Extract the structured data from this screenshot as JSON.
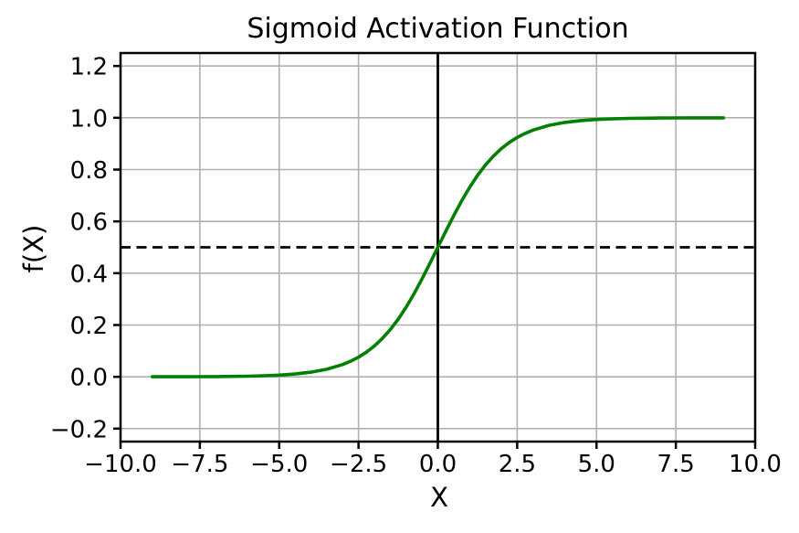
{
  "chart_data": {
    "type": "line",
    "title": "Sigmoid Activation Function",
    "xlabel": "X",
    "ylabel": "f(X)",
    "xlim": [
      -10,
      10
    ],
    "ylim": [
      -0.25,
      1.25
    ],
    "grid": true,
    "grid_color": "#b0b0b0",
    "background_color": "#ffffff",
    "axis_color": "#000000",
    "legend": "none",
    "xtick_values": [
      -10,
      -7.5,
      -5,
      -2.5,
      0,
      2.5,
      5,
      7.5,
      10
    ],
    "xtick_labels": [
      "−10.0",
      "−7.5",
      "−5.0",
      "−2.5",
      "0.0",
      "2.5",
      "5.0",
      "7.5",
      "10.0"
    ],
    "ytick_values": [
      -0.2,
      0.0,
      0.2,
      0.4,
      0.6,
      0.8,
      1.0,
      1.2
    ],
    "ytick_labels": [
      "−0.2",
      "0.0",
      "0.2",
      "0.4",
      "0.6",
      "0.8",
      "1.0",
      "1.2"
    ],
    "series": [
      {
        "name": "sigmoid",
        "color": "#008000",
        "line_width": 3.6,
        "x_range": [
          -9,
          9
        ],
        "points": [
          [
            -9,
            0.00012
          ],
          [
            -8.5,
            0.0002
          ],
          [
            -8,
            0.00034
          ],
          [
            -7.5,
            0.00055
          ],
          [
            -7,
            0.00091
          ],
          [
            -6.5,
            0.0015
          ],
          [
            -6,
            0.00247
          ],
          [
            -5.5,
            0.00407
          ],
          [
            -5,
            0.00669
          ],
          [
            -4.5,
            0.01099
          ],
          [
            -4,
            0.01799
          ],
          [
            -3.5,
            0.02931
          ],
          [
            -3,
            0.04743
          ],
          [
            -2.75,
            0.06009
          ],
          [
            -2.5,
            0.07586
          ],
          [
            -2.25,
            0.09535
          ],
          [
            -2,
            0.1192
          ],
          [
            -1.75,
            0.14805
          ],
          [
            -1.5,
            0.18243
          ],
          [
            -1.25,
            0.2227
          ],
          [
            -1,
            0.26894
          ],
          [
            -0.75,
            0.32082
          ],
          [
            -0.5,
            0.37754
          ],
          [
            -0.25,
            0.43782
          ],
          [
            0,
            0.5
          ],
          [
            0.25,
            0.56218
          ],
          [
            0.5,
            0.62246
          ],
          [
            0.75,
            0.67918
          ],
          [
            1,
            0.73106
          ],
          [
            1.25,
            0.7773
          ],
          [
            1.5,
            0.81757
          ],
          [
            1.75,
            0.85195
          ],
          [
            2,
            0.8808
          ],
          [
            2.25,
            0.90465
          ],
          [
            2.5,
            0.92414
          ],
          [
            2.75,
            0.93991
          ],
          [
            3,
            0.95257
          ],
          [
            3.5,
            0.97069
          ],
          [
            4,
            0.98201
          ],
          [
            4.5,
            0.98901
          ],
          [
            5,
            0.99331
          ],
          [
            5.5,
            0.99593
          ],
          [
            6,
            0.99753
          ],
          [
            6.5,
            0.9985
          ],
          [
            7,
            0.99909
          ],
          [
            7.5,
            0.99945
          ],
          [
            8,
            0.99966
          ],
          [
            8.5,
            0.9998
          ],
          [
            9,
            0.99988
          ]
        ]
      }
    ],
    "reference_lines": [
      {
        "orientation": "vertical",
        "value": 0,
        "style": "solid",
        "color": "#000000"
      },
      {
        "orientation": "horizontal",
        "value": 0.5,
        "style": "dashed",
        "color": "#000000"
      }
    ]
  }
}
